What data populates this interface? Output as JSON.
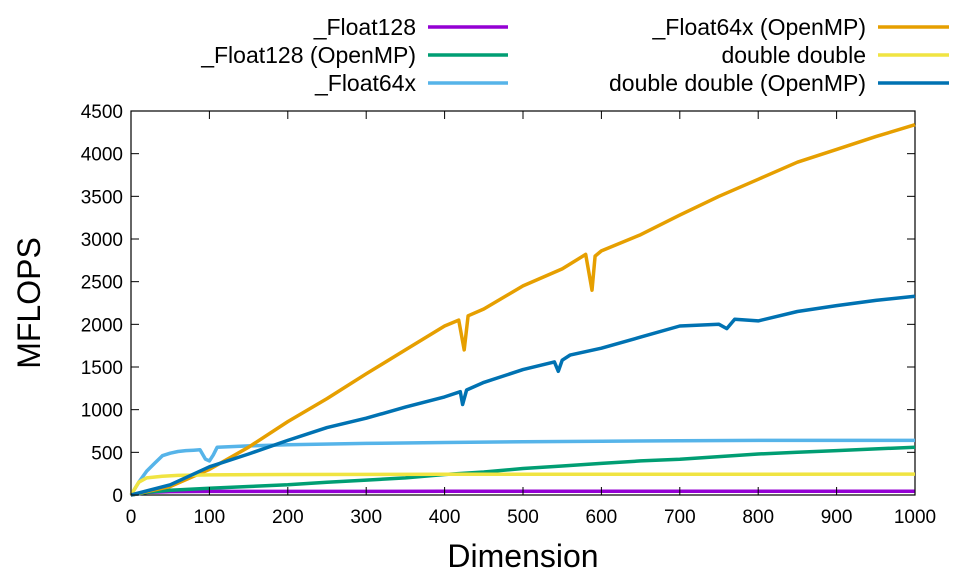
{
  "chart_data": {
    "type": "line",
    "xlabel": "Dimension",
    "ylabel": "MFLOPS",
    "xlim": [
      0,
      1000
    ],
    "ylim": [
      0,
      4500
    ],
    "xticks": [
      "0",
      "100",
      "200",
      "300",
      "400",
      "500",
      "600",
      "700",
      "800",
      "900",
      "1000"
    ],
    "yticks": [
      "0",
      "500",
      "1000",
      "1500",
      "2000",
      "2500",
      "3000",
      "3500",
      "4000",
      "4500"
    ],
    "grid": false,
    "legend_position": "top",
    "series": [
      {
        "name": "_Float128",
        "color": "#9400d3",
        "x": [
          0,
          20,
          50,
          100,
          200,
          400,
          600,
          800,
          1000
        ],
        "y": [
          0,
          30,
          40,
          42,
          42,
          43,
          43,
          43,
          43
        ]
      },
      {
        "name": "_Float128 (OpenMP)",
        "color": "#009e73",
        "x": [
          0,
          20,
          50,
          100,
          150,
          200,
          250,
          300,
          350,
          400,
          450,
          500,
          550,
          600,
          650,
          700,
          750,
          800,
          850,
          900,
          950,
          1000
        ],
        "y": [
          0,
          30,
          55,
          80,
          100,
          120,
          150,
          175,
          200,
          240,
          270,
          310,
          340,
          370,
          400,
          420,
          450,
          480,
          500,
          520,
          540,
          560
        ]
      },
      {
        "name": "_Float64x",
        "color": "#56b4e9",
        "x": [
          0,
          10,
          20,
          30,
          40,
          50,
          60,
          70,
          80,
          88,
          95,
          100,
          105,
          110,
          150,
          200,
          300,
          400,
          500,
          600,
          700,
          800,
          900,
          1000
        ],
        "y": [
          0,
          150,
          280,
          370,
          460,
          490,
          510,
          520,
          525,
          530,
          420,
          400,
          470,
          560,
          575,
          590,
          605,
          615,
          625,
          630,
          635,
          640,
          640,
          640
        ]
      },
      {
        "name": "_Float64x (OpenMP)",
        "color": "#e69f00",
        "x": [
          0,
          50,
          100,
          150,
          200,
          250,
          300,
          350,
          400,
          418,
          425,
          430,
          450,
          500,
          550,
          580,
          588,
          592,
          600,
          650,
          700,
          750,
          800,
          850,
          900,
          950,
          1000
        ],
        "y": [
          0,
          100,
          300,
          560,
          860,
          1130,
          1420,
          1700,
          1980,
          2050,
          1700,
          2100,
          2180,
          2450,
          2650,
          2820,
          2400,
          2800,
          2860,
          3050,
          3280,
          3500,
          3700,
          3900,
          4050,
          4200,
          4340
        ]
      },
      {
        "name": "double double",
        "color": "#f0e442",
        "x": [
          0,
          10,
          20,
          40,
          60,
          100,
          200,
          400,
          600,
          800,
          1000
        ],
        "y": [
          0,
          150,
          200,
          220,
          230,
          235,
          240,
          242,
          243,
          244,
          245
        ]
      },
      {
        "name": "double double (OpenMP)",
        "color": "#0072b2",
        "x": [
          0,
          50,
          100,
          150,
          200,
          250,
          300,
          350,
          400,
          420,
          423,
          428,
          450,
          500,
          540,
          545,
          550,
          560,
          600,
          650,
          700,
          750,
          760,
          770,
          800,
          850,
          900,
          950,
          1000
        ],
        "y": [
          0,
          120,
          330,
          480,
          640,
          790,
          900,
          1030,
          1150,
          1210,
          1060,
          1230,
          1320,
          1470,
          1560,
          1450,
          1580,
          1640,
          1720,
          1850,
          1980,
          2000,
          1950,
          2060,
          2040,
          2150,
          2220,
          2280,
          2330
        ]
      }
    ]
  }
}
